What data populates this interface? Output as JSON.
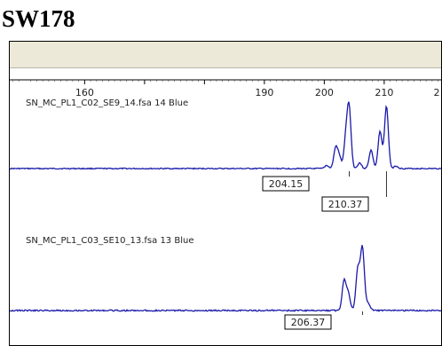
{
  "title": "SW178",
  "chart_data": [
    {
      "type": "line",
      "axis": {
        "xlim": [
          147.5,
          219.5
        ],
        "ticks": [
          160,
          170,
          180,
          190,
          200,
          210,
          220
        ],
        "labeled_ticks": [
          "160",
          "190",
          "200",
          "210",
          "2"
        ]
      },
      "trace_label": "SN_MC_PL1_C02_SE9_14.fsa  14 Blue",
      "color": "#1a1aaa",
      "peaks": [
        {
          "x": 200.4,
          "y": 0.05
        },
        {
          "x": 201.9,
          "y": 0.32
        },
        {
          "x": 202.5,
          "y": 0.18
        },
        {
          "x": 203.6,
          "y": 0.45
        },
        {
          "x": 204.15,
          "y": 0.92
        },
        {
          "x": 205.9,
          "y": 0.09
        },
        {
          "x": 207.8,
          "y": 0.29
        },
        {
          "x": 209.3,
          "y": 0.58
        },
        {
          "x": 210.37,
          "y": 0.98
        },
        {
          "x": 212.0,
          "y": 0.04
        }
      ],
      "peak_labels": [
        {
          "x": 204.15,
          "text": "204.15"
        },
        {
          "x": 210.37,
          "text": "210.37"
        }
      ]
    },
    {
      "type": "line",
      "trace_label": "SN_MC_PL1_C03_SE10_13.fsa  13 Blue",
      "color": "#1a1aaa",
      "peaks": [
        {
          "x": 203.3,
          "y": 0.47
        },
        {
          "x": 204.0,
          "y": 0.27
        },
        {
          "x": 205.6,
          "y": 0.66
        },
        {
          "x": 206.37,
          "y": 0.98
        },
        {
          "x": 207.3,
          "y": 0.12
        }
      ],
      "peak_labels": [
        {
          "x": 206.37,
          "text": "206.37"
        }
      ]
    }
  ]
}
